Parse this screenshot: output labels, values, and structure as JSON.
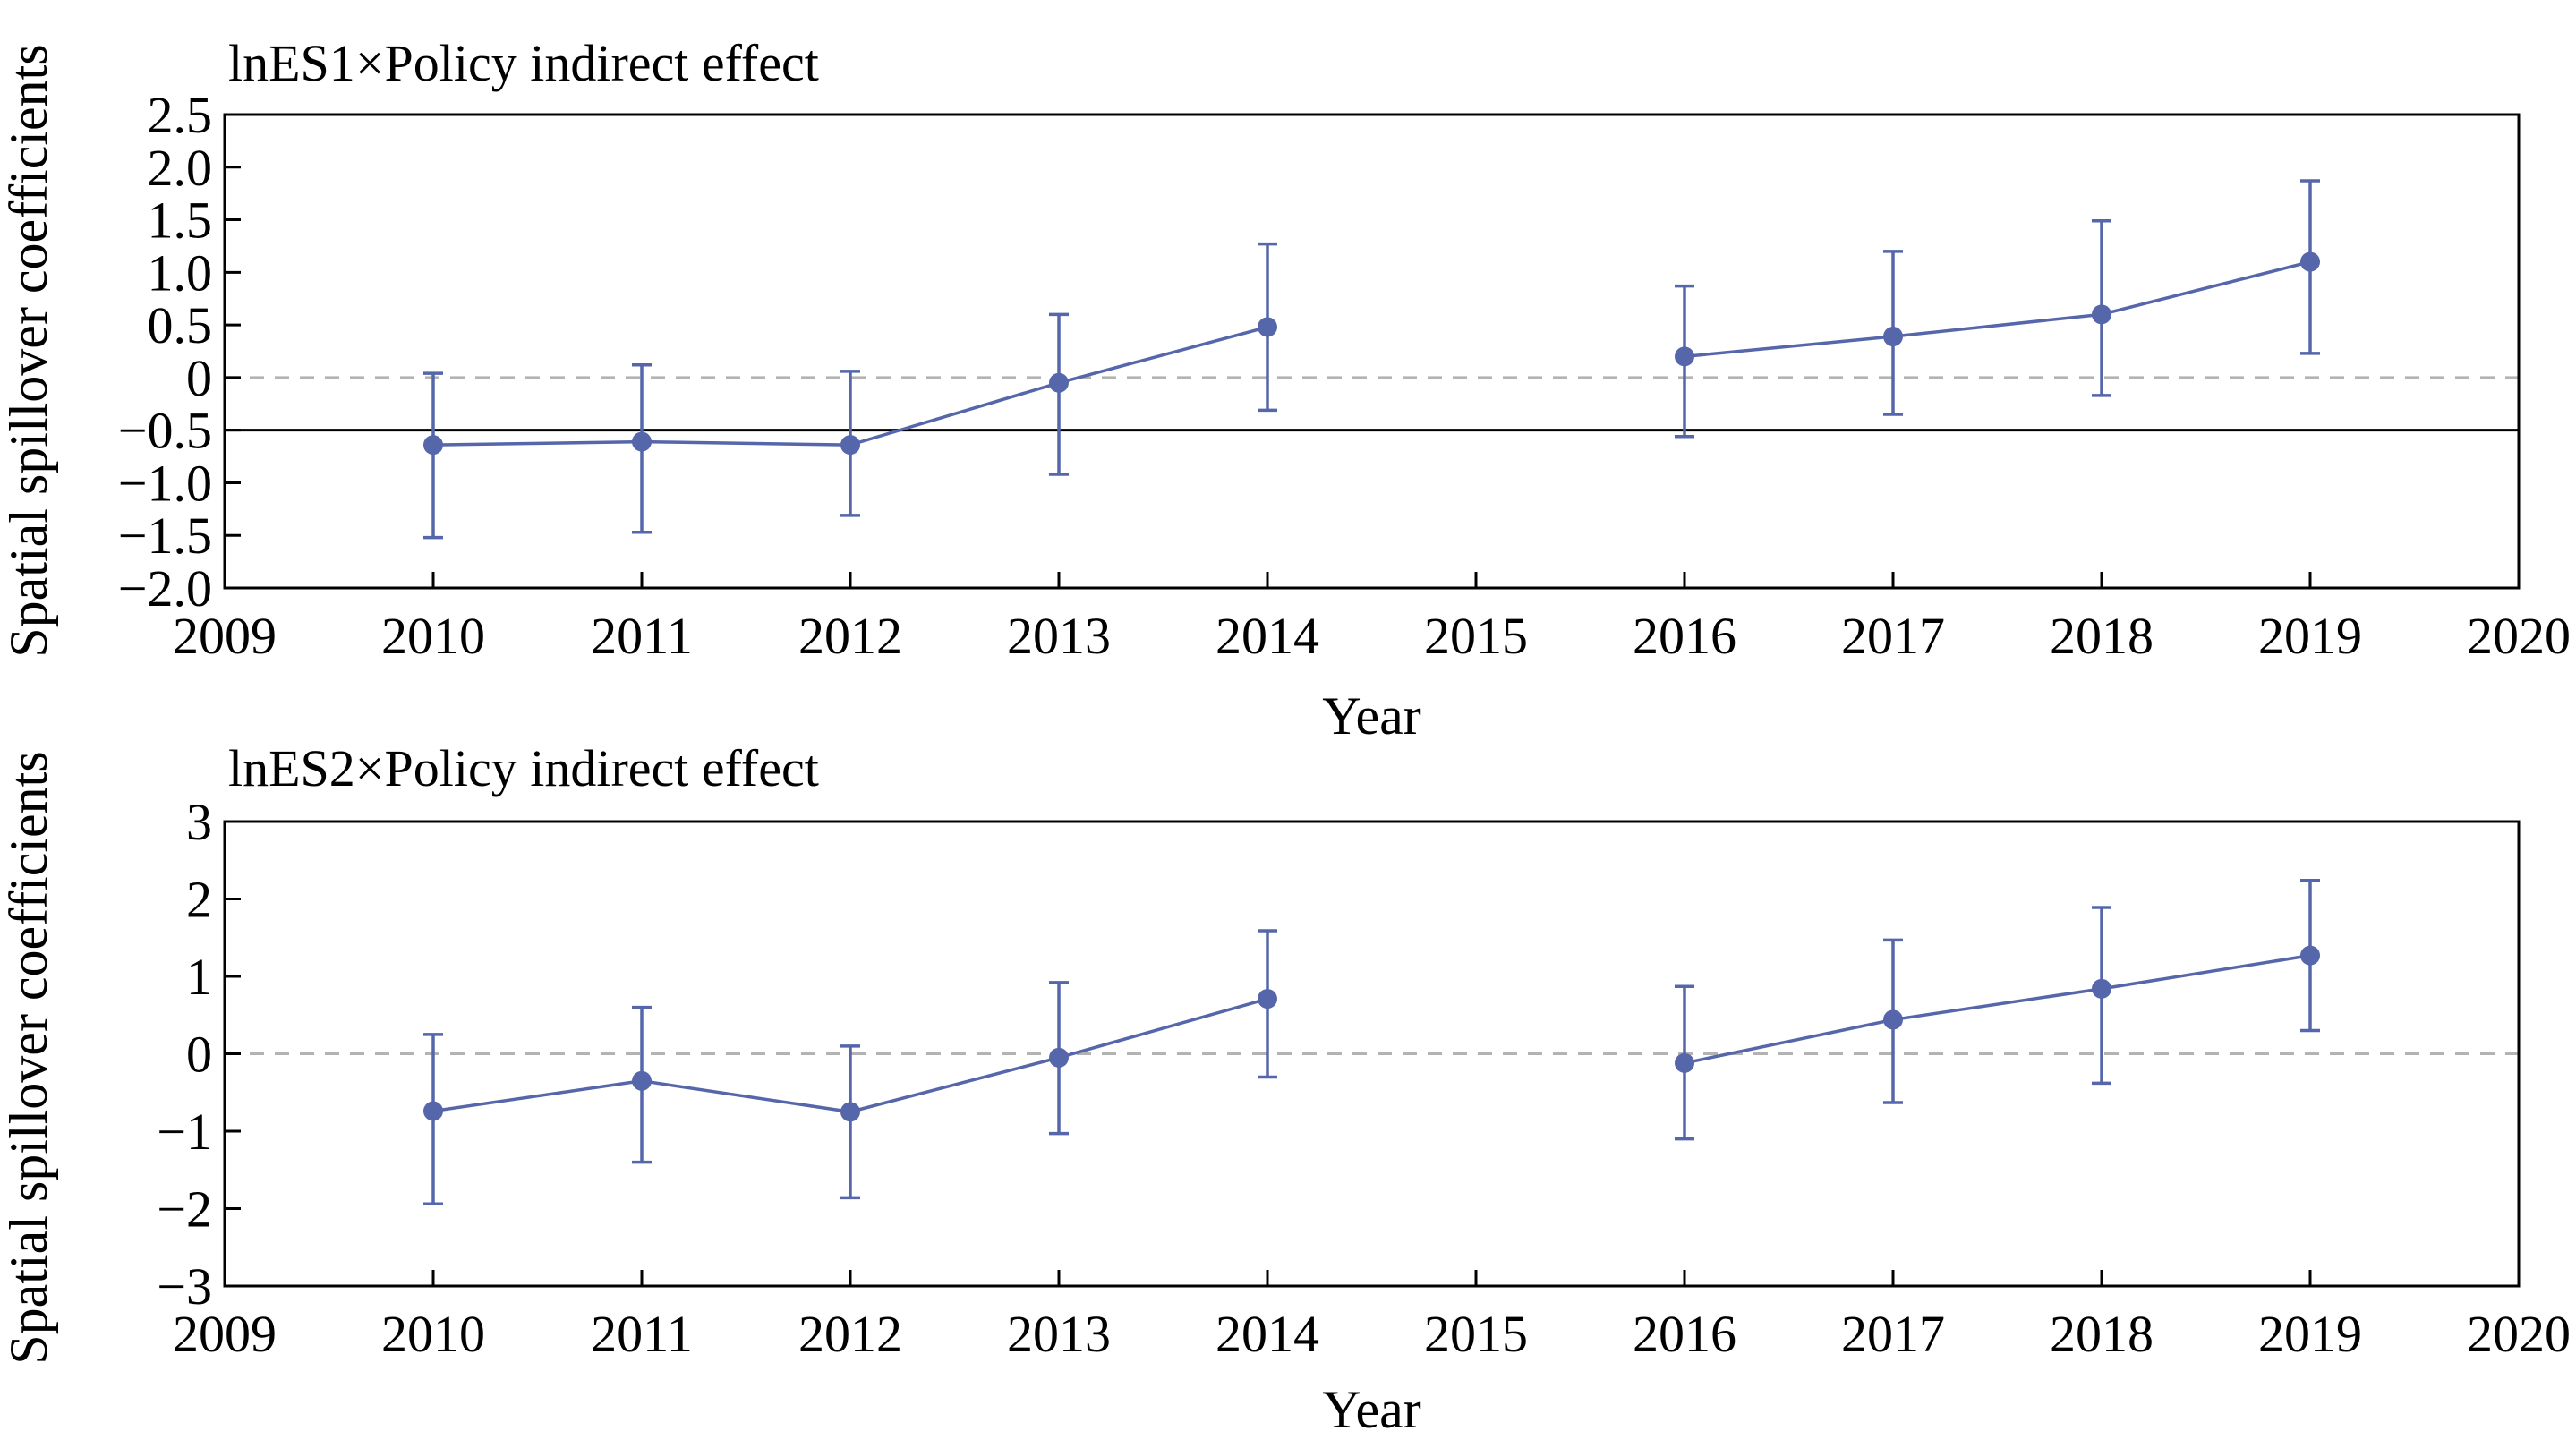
{
  "figure": {
    "ylabel": "Spatial spillover coefficients",
    "xlabel": "Year"
  },
  "colors": {
    "series": "#5566aa",
    "zero_line": "#b3b3b3",
    "axis": "#000000"
  },
  "chart_data": [
    {
      "type": "line",
      "title": "lnES1×Policy indirect effect",
      "xlabel": "Year",
      "ylabel": "Spatial spillover coefficients",
      "xlim": [
        2009,
        2020
      ],
      "ylim": [
        -2.0,
        2.5
      ],
      "xticks": [
        "2009",
        "2010",
        "2011",
        "2012",
        "2013",
        "2014",
        "2015",
        "2016",
        "2017",
        "2018",
        "2019",
        "2020"
      ],
      "yticks": [
        "2.5",
        "2.0",
        "1.5",
        "1.0",
        "0.5",
        "0",
        "−0.5",
        "−1.0",
        "−1.5",
        "−2.0"
      ],
      "ytick_values": [
        2.5,
        2.0,
        1.5,
        1.0,
        0.5,
        0,
        -0.5,
        -1.0,
        -1.5,
        -2.0
      ],
      "zero_line": 0,
      "reference_line": -0.5,
      "series": [
        {
          "x": [
            2010,
            2011,
            2012,
            2013,
            2014,
            2016,
            2017,
            2018,
            2019
          ],
          "y": [
            -0.64,
            -0.61,
            -0.64,
            -0.05,
            0.48,
            0.2,
            0.39,
            0.6,
            1.1
          ],
          "lower": [
            -1.52,
            -1.47,
            -1.31,
            -0.92,
            -0.31,
            -0.56,
            -0.35,
            -0.17,
            0.23
          ],
          "upper": [
            0.04,
            0.12,
            0.06,
            0.6,
            1.27,
            0.87,
            1.2,
            1.49,
            1.87
          ]
        }
      ]
    },
    {
      "type": "line",
      "title": "lnES2×Policy indirect effect",
      "xlabel": "Year",
      "ylabel": "Spatial spillover coefficients",
      "xlim": [
        2009,
        2020
      ],
      "ylim": [
        -3,
        3
      ],
      "xticks": [
        "2009",
        "2010",
        "2011",
        "2012",
        "2013",
        "2014",
        "2015",
        "2016",
        "2017",
        "2018",
        "2019",
        "2020"
      ],
      "yticks": [
        "3",
        "2",
        "1",
        "0",
        "−1",
        "−2",
        "−3"
      ],
      "ytick_values": [
        3,
        2,
        1,
        0,
        -1,
        -2,
        -3
      ],
      "zero_line": 0,
      "series": [
        {
          "x": [
            2010,
            2011,
            2012,
            2013,
            2014,
            2016,
            2017,
            2018,
            2019
          ],
          "y": [
            -0.74,
            -0.35,
            -0.75,
            -0.05,
            0.71,
            -0.12,
            0.44,
            0.84,
            1.27
          ],
          "lower": [
            -1.94,
            -1.4,
            -1.86,
            -1.03,
            -0.3,
            -1.1,
            -0.63,
            -0.38,
            0.3
          ],
          "upper": [
            0.25,
            0.6,
            0.1,
            0.92,
            1.59,
            0.87,
            1.47,
            1.89,
            2.24
          ]
        }
      ]
    }
  ]
}
